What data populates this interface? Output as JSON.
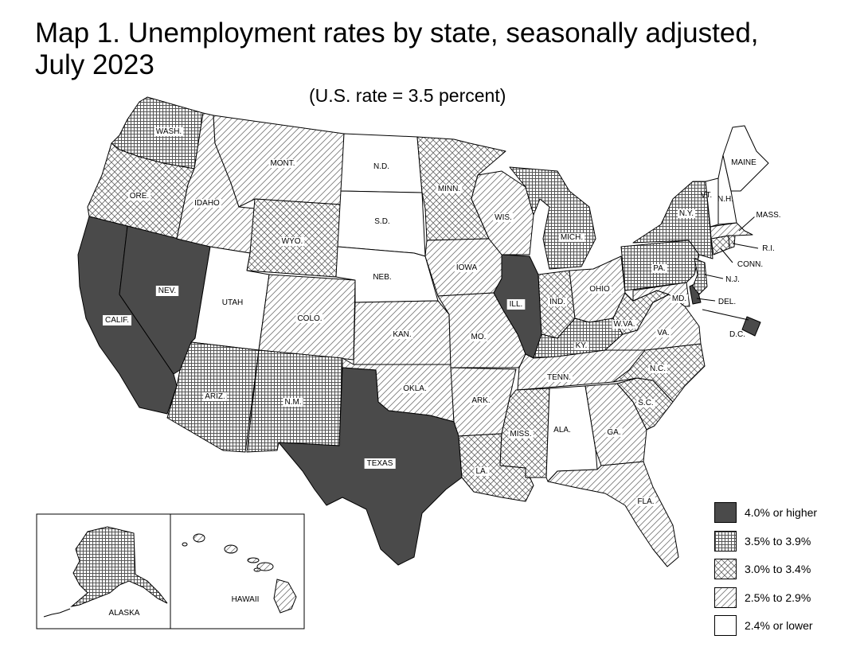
{
  "title_line1": "Map 1. Unemployment rates by state, seasonally adjusted,",
  "title_line2": "July 2023",
  "subtitle": "(U.S. rate = 3.5 percent)",
  "legend": [
    {
      "label": "4.0% or higher",
      "pattern": "solid"
    },
    {
      "label": "3.5% to 3.9%",
      "pattern": "grid"
    },
    {
      "label": "3.0% to 3.4%",
      "pattern": "cross"
    },
    {
      "label": "2.5% to 2.9%",
      "pattern": "diag"
    },
    {
      "label": "2.4% or lower",
      "pattern": "white"
    }
  ],
  "colors": {
    "solid_fill": "#4a4a4a",
    "stroke": "#000000",
    "background": "#ffffff"
  },
  "states": [
    {
      "abbr": "WASH.",
      "category": "grid"
    },
    {
      "abbr": "ORE.",
      "category": "cross"
    },
    {
      "abbr": "CALIF.",
      "category": "solid"
    },
    {
      "abbr": "NEV.",
      "category": "solid"
    },
    {
      "abbr": "IDAHO",
      "category": "diag"
    },
    {
      "abbr": "MONT.",
      "category": "diag"
    },
    {
      "abbr": "WYO.",
      "category": "cross"
    },
    {
      "abbr": "UTAH",
      "category": "white"
    },
    {
      "abbr": "COLO.",
      "category": "diag"
    },
    {
      "abbr": "ARIZ.",
      "category": "grid"
    },
    {
      "abbr": "N.M.",
      "category": "grid"
    },
    {
      "abbr": "N.D.",
      "category": "white"
    },
    {
      "abbr": "S.D.",
      "category": "white"
    },
    {
      "abbr": "NEB.",
      "category": "white"
    },
    {
      "abbr": "KAN.",
      "category": "diag"
    },
    {
      "abbr": "OKLA.",
      "category": "diag"
    },
    {
      "abbr": "TEXAS",
      "category": "solid"
    },
    {
      "abbr": "MINN.",
      "category": "cross"
    },
    {
      "abbr": "IOWA",
      "category": "diag"
    },
    {
      "abbr": "MO.",
      "category": "diag"
    },
    {
      "abbr": "ARK.",
      "category": "diag"
    },
    {
      "abbr": "LA.",
      "category": "cross"
    },
    {
      "abbr": "WIS.",
      "category": "diag"
    },
    {
      "abbr": "ILL.",
      "category": "solid"
    },
    {
      "abbr": "MICH.",
      "category": "grid"
    },
    {
      "abbr": "IND.",
      "category": "cross"
    },
    {
      "abbr": "OHIO",
      "category": "diag"
    },
    {
      "abbr": "KY.",
      "category": "grid"
    },
    {
      "abbr": "TENN.",
      "category": "diag"
    },
    {
      "abbr": "MISS.",
      "category": "cross"
    },
    {
      "abbr": "ALA.",
      "category": "white"
    },
    {
      "abbr": "GA.",
      "category": "diag"
    },
    {
      "abbr": "FLA.",
      "category": "diag"
    },
    {
      "abbr": "S.C.",
      "category": "cross"
    },
    {
      "abbr": "N.C.",
      "category": "cross"
    },
    {
      "abbr": "VA.",
      "category": "diag"
    },
    {
      "abbr": "W.VA.",
      "category": "cross"
    },
    {
      "abbr": "PA.",
      "category": "grid"
    },
    {
      "abbr": "N.Y.",
      "category": "grid"
    },
    {
      "abbr": "MD.",
      "category": "diag"
    },
    {
      "abbr": "DEL.",
      "category": "solid"
    },
    {
      "abbr": "D.C.",
      "category": "solid"
    },
    {
      "abbr": "N.J.",
      "category": "grid"
    },
    {
      "abbr": "CONN.",
      "category": "cross"
    },
    {
      "abbr": "R.I.",
      "category": "cross"
    },
    {
      "abbr": "MASS.",
      "category": "diag"
    },
    {
      "abbr": "VT.",
      "category": "white"
    },
    {
      "abbr": "N.H.",
      "category": "white"
    },
    {
      "abbr": "MAINE",
      "category": "white"
    },
    {
      "abbr": "ALASKA",
      "category": "grid"
    },
    {
      "abbr": "HAWAII",
      "category": "diag"
    }
  ]
}
